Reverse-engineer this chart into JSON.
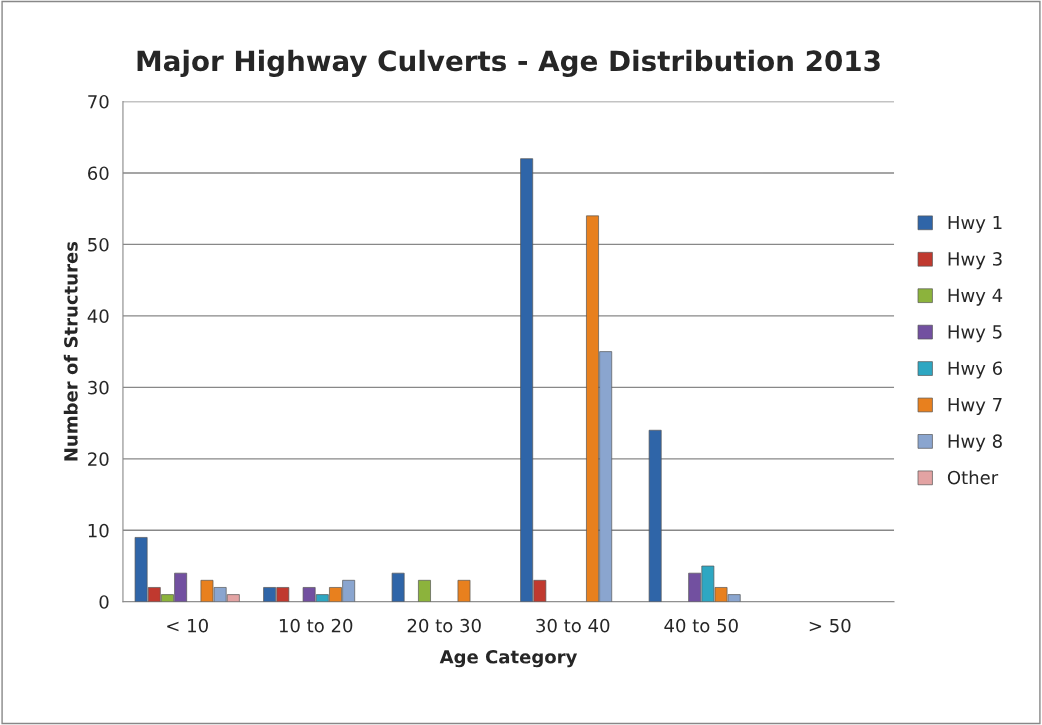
{
  "chart_data": {
    "type": "bar",
    "title": "Major Highway Culverts - Age Distribution 2013",
    "xlabel": "Age Category",
    "ylabel": "Number of Structures",
    "categories": [
      "< 10",
      "10 to 20",
      "20 to 30",
      "30 to 40",
      "40 to 50",
      "> 50"
    ],
    "series": [
      {
        "name": "Hwy 1",
        "color": "#2f65a8",
        "values": [
          9,
          2,
          4,
          62,
          24,
          0
        ]
      },
      {
        "name": "Hwy 3",
        "color": "#c0392f",
        "values": [
          2,
          2,
          0,
          3,
          0,
          0
        ]
      },
      {
        "name": "Hwy 4",
        "color": "#8cb33c",
        "values": [
          1,
          0,
          3,
          0,
          0,
          0
        ]
      },
      {
        "name": "Hwy 5",
        "color": "#7250a0",
        "values": [
          4,
          2,
          0,
          0,
          4,
          0
        ]
      },
      {
        "name": "Hwy 6",
        "color": "#2ea7c2",
        "values": [
          0,
          1,
          0,
          0,
          5,
          0
        ]
      },
      {
        "name": "Hwy 7",
        "color": "#e8801e",
        "values": [
          3,
          2,
          3,
          54,
          2,
          0
        ]
      },
      {
        "name": "Hwy 8",
        "color": "#8aa5cf",
        "values": [
          2,
          3,
          0,
          35,
          1,
          0
        ]
      },
      {
        "name": "Other",
        "color": "#e3a3a3",
        "values": [
          1,
          0,
          0,
          0,
          0,
          0
        ]
      }
    ],
    "ylim": [
      0,
      70
    ],
    "yticks": [
      0,
      10,
      20,
      30,
      40,
      50,
      60,
      70
    ],
    "grid": "y",
    "legend": "right"
  }
}
